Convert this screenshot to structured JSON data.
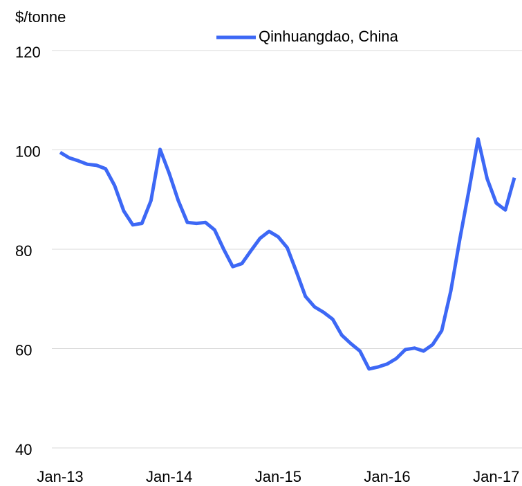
{
  "chart_data": {
    "type": "line",
    "y_label": "$/tonne",
    "categories": [
      "Jan-13",
      null,
      null,
      null,
      null,
      null,
      null,
      null,
      null,
      null,
      null,
      null,
      "Jan-14",
      null,
      null,
      null,
      null,
      null,
      null,
      null,
      null,
      null,
      null,
      null,
      "Jan-15",
      null,
      null,
      null,
      null,
      null,
      null,
      null,
      null,
      null,
      null,
      null,
      "Jan-16",
      null,
      null,
      null,
      null,
      null,
      null,
      null,
      null,
      null,
      null,
      null,
      "Jan-17",
      null,
      null
    ],
    "series": [
      {
        "name": "Qinhuangdao, China",
        "color": "#3d68f5",
        "values": [
          99.5,
          98.4,
          97.8,
          97.1,
          96.9,
          96.2,
          92.8,
          87.7,
          84.9,
          85.2,
          89.8,
          100.1,
          95.3,
          89.8,
          85.4,
          85.2,
          85.4,
          83.9,
          80.0,
          76.5,
          77.1,
          79.7,
          82.2,
          83.6,
          82.5,
          80.3,
          75.5,
          70.5,
          68.4,
          67.3,
          65.9,
          62.7,
          61.0,
          59.5,
          55.9,
          56.3,
          56.9,
          58.0,
          59.8,
          60.1,
          59.5,
          60.8,
          63.6,
          71.6,
          82.1,
          91.9,
          102.2,
          94.2,
          89.3,
          87.9,
          94.4
        ]
      }
    ],
    "ylim": [
      40,
      120
    ],
    "yticks": [
      40,
      60,
      80,
      100,
      120
    ],
    "grid": true
  }
}
